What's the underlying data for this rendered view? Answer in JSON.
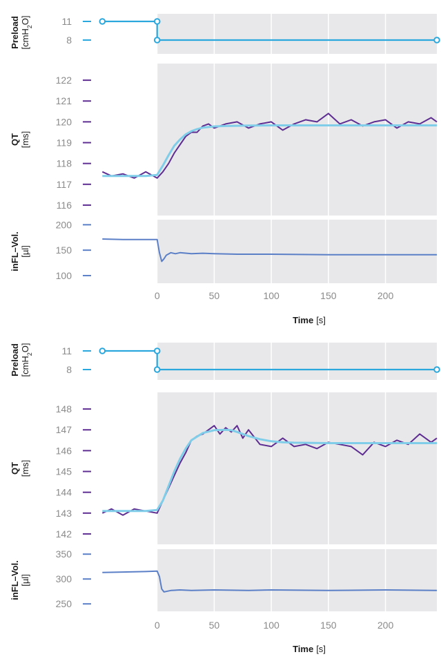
{
  "chart_data": [
    {
      "type": "line",
      "x_range": [
        -50,
        245
      ],
      "x_ticks": [
        0,
        50,
        100,
        150,
        200
      ],
      "xlabel": "Time",
      "xlabel_unit": "[s]",
      "panels": {
        "preload": {
          "ylabel": "Preload",
          "ylabel_unit_parts": [
            "[cmH",
            "2",
            "O]"
          ],
          "y_ticks": [
            11,
            8
          ],
          "series": [
            {
              "x": [
                -48,
                0,
                0,
                0,
                245
              ],
              "y": [
                11,
                11,
                8,
                8,
                8
              ],
              "markers_at": [
                0,
                1,
                2,
                4
              ],
              "color": "#2aa7dc"
            }
          ]
        },
        "qt": {
          "ylabel": "QT",
          "ylabel_unit": "[ms]",
          "y_range": [
            115.5,
            122.8
          ],
          "y_ticks": [
            122,
            121,
            120,
            119,
            118,
            117,
            116
          ],
          "series": [
            {
              "kind": "measured",
              "color": "#5e2d91",
              "x": [
                -48,
                -40,
                -30,
                -20,
                -10,
                0,
                5,
                10,
                15,
                20,
                25,
                30,
                35,
                40,
                45,
                50,
                60,
                70,
                80,
                90,
                100,
                110,
                120,
                130,
                140,
                150,
                160,
                170,
                180,
                190,
                200,
                210,
                220,
                230,
                240,
                245
              ],
              "y": [
                117.6,
                117.4,
                117.5,
                117.3,
                117.6,
                117.3,
                117.6,
                118.0,
                118.5,
                118.9,
                119.3,
                119.5,
                119.5,
                119.8,
                119.9,
                119.7,
                119.9,
                120.0,
                119.7,
                119.9,
                120.0,
                119.6,
                119.9,
                120.1,
                120.0,
                120.4,
                119.9,
                120.1,
                119.8,
                120.0,
                120.1,
                119.7,
                120.0,
                119.9,
                120.2,
                120.0
              ]
            },
            {
              "kind": "fit",
              "color": "#7fcde8",
              "x": [
                -48,
                -30,
                -10,
                0,
                5,
                10,
                15,
                20,
                25,
                30,
                35,
                40,
                50,
                60,
                80,
                100,
                150,
                200,
                245
              ],
              "y": [
                117.4,
                117.4,
                117.4,
                117.45,
                117.9,
                118.4,
                118.85,
                119.15,
                119.4,
                119.55,
                119.65,
                119.72,
                119.78,
                119.8,
                119.82,
                119.83,
                119.83,
                119.83,
                119.83
              ]
            }
          ]
        },
        "volume": {
          "ylabel": "inFL–Vol.",
          "ylabel_unit": "[µl]",
          "y_range": [
            85,
            210
          ],
          "y_ticks": [
            200,
            150,
            100
          ],
          "series": [
            {
              "color": "#5b7fc7",
              "x": [
                -48,
                -30,
                -10,
                0,
                2,
                4,
                6,
                8,
                12,
                16,
                20,
                30,
                40,
                50,
                70,
                100,
                150,
                200,
                245
              ],
              "y": [
                172,
                171,
                171,
                171,
                145,
                128,
                133,
                140,
                145,
                143,
                145,
                143,
                144,
                143,
                142,
                142,
                141,
                141,
                141
              ]
            }
          ]
        }
      }
    },
    {
      "type": "line",
      "x_range": [
        -50,
        245
      ],
      "x_ticks": [
        0,
        50,
        100,
        150,
        200
      ],
      "xlabel": "Time",
      "xlabel_unit": "[s]",
      "panels": {
        "preload": {
          "ylabel": "Preload",
          "ylabel_unit_parts": [
            "[cmH",
            "2",
            "O]"
          ],
          "y_ticks": [
            11,
            8
          ],
          "series": [
            {
              "x": [
                -48,
                0,
                0,
                0,
                245
              ],
              "y": [
                11,
                11,
                8,
                8,
                8
              ],
              "markers_at": [
                0,
                1,
                2,
                4
              ],
              "color": "#2aa7dc"
            }
          ]
        },
        "qt": {
          "ylabel": "QT",
          "ylabel_unit": "[ms]",
          "y_range": [
            141.5,
            148.8
          ],
          "y_ticks": [
            148,
            147,
            146,
            145,
            144,
            143,
            142
          ],
          "series": [
            {
              "kind": "measured",
              "color": "#5e2d91",
              "x": [
                -48,
                -40,
                -30,
                -20,
                -10,
                0,
                5,
                10,
                15,
                20,
                25,
                30,
                35,
                40,
                45,
                50,
                55,
                60,
                65,
                70,
                75,
                80,
                90,
                100,
                110,
                120,
                130,
                140,
                150,
                160,
                170,
                180,
                190,
                200,
                210,
                220,
                230,
                240,
                245
              ],
              "y": [
                143.0,
                143.2,
                142.9,
                143.2,
                143.1,
                143.0,
                143.6,
                144.2,
                144.8,
                145.4,
                145.9,
                146.5,
                146.7,
                146.8,
                147.0,
                147.2,
                146.8,
                147.1,
                146.9,
                147.2,
                146.6,
                147.0,
                146.3,
                146.2,
                146.6,
                146.2,
                146.3,
                146.1,
                146.4,
                146.3,
                146.2,
                145.8,
                146.4,
                146.2,
                146.5,
                146.3,
                146.8,
                146.4,
                146.6
              ]
            },
            {
              "kind": "fit",
              "color": "#7fcde8",
              "x": [
                -48,
                -30,
                -10,
                0,
                5,
                10,
                15,
                20,
                25,
                30,
                40,
                50,
                60,
                65,
                70,
                80,
                90,
                100,
                110,
                120,
                150,
                200,
                245
              ],
              "y": [
                143.1,
                143.1,
                143.1,
                143.15,
                143.6,
                144.3,
                145.0,
                145.6,
                146.1,
                146.5,
                146.85,
                146.98,
                147.0,
                146.98,
                146.9,
                146.7,
                146.55,
                146.45,
                146.4,
                146.38,
                146.36,
                146.36,
                146.36
              ]
            }
          ]
        },
        "volume": {
          "ylabel": "inFL–Vol.",
          "ylabel_unit": "[µl]",
          "y_range": [
            235,
            360
          ],
          "y_ticks": [
            350,
            300,
            250
          ],
          "series": [
            {
              "color": "#5b7fc7",
              "x": [
                -48,
                -30,
                -10,
                0,
                2,
                4,
                6,
                8,
                12,
                20,
                30,
                50,
                80,
                100,
                150,
                200,
                245
              ],
              "y": [
                313,
                314,
                315,
                316,
                305,
                280,
                274,
                275,
                277,
                278,
                277,
                278,
                277,
                278,
                277,
                278,
                277
              ]
            }
          ]
        }
      }
    }
  ]
}
